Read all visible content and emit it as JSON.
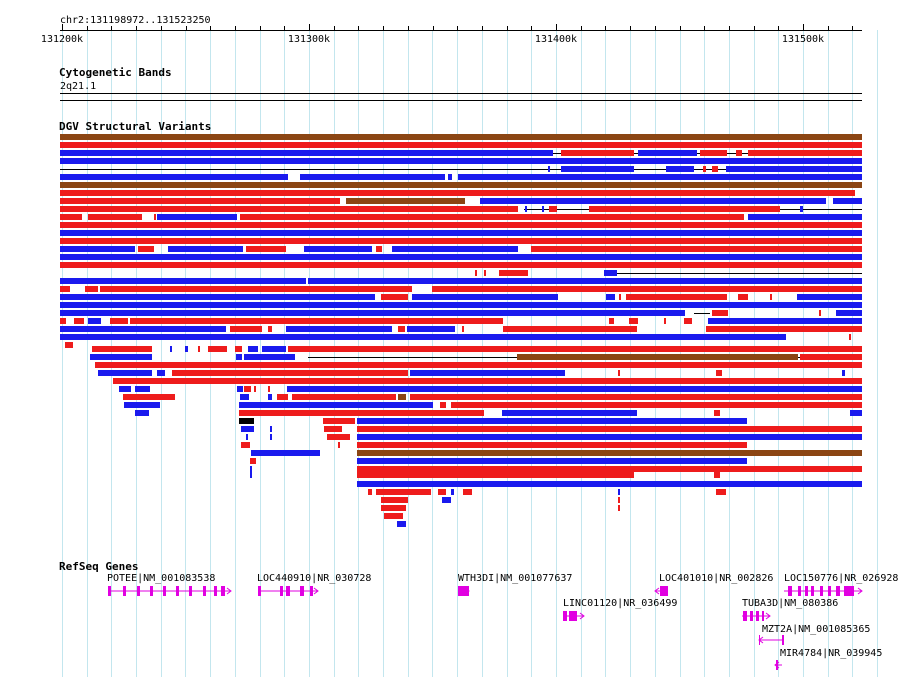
{
  "location": "chr2:131198972..131523250",
  "ruler": {
    "ticks": [
      {
        "label": "131200k",
        "pos": 131200000
      },
      {
        "label": "131300k",
        "pos": 131300000
      },
      {
        "label": "131400k",
        "pos": 131400000
      },
      {
        "label": "131500k",
        "pos": 131500000
      }
    ]
  },
  "tracks": {
    "cytoband": {
      "title": "Cytogenetic Bands",
      "band": "2q21.1"
    },
    "dgv": {
      "title": "DGV Structural Variants"
    },
    "refseq": {
      "title": "RefSeq Genes"
    }
  },
  "genes": [
    {
      "id": "potee",
      "label": "POTEE|NM_001083538",
      "strand": "+"
    },
    {
      "id": "loc440910",
      "label": "LOC440910|NR_030728",
      "strand": "+"
    },
    {
      "id": "wth3di",
      "label": "WTH3DI|NM_001077637",
      "strand": "+"
    },
    {
      "id": "loc401010",
      "label": "LOC401010|NR_002826",
      "strand": "-"
    },
    {
      "id": "loc150776",
      "label": "LOC150776|NR_026928",
      "strand": "+"
    },
    {
      "id": "linc01120",
      "label": "LINC01120|NR_036499",
      "strand": "+"
    },
    {
      "id": "tuba3d",
      "label": "TUBA3D|NM_080386",
      "strand": "+"
    },
    {
      "id": "mzt2a",
      "label": "MZT2A|NM_001085365",
      "strand": "-"
    },
    {
      "id": "mir4784",
      "label": "MIR4784|NR_039945",
      "strand": "-"
    }
  ],
  "colors": {
    "gain": "#ee1c1c",
    "loss": "#1a1aee",
    "gain_loss": "#8b4513",
    "complex": "#000000",
    "gene": "#e100e1",
    "grid": "#c3e6ee"
  }
}
